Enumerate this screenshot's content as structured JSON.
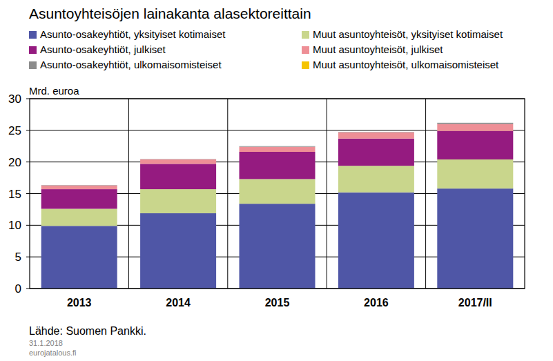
{
  "chart_data": {
    "type": "bar",
    "stacked": true,
    "grid": true,
    "title": "Asuntoyhteisöjen lainakanta alasektoreittain",
    "y_label": "Mrd. euroa",
    "categories": [
      "2013",
      "2014",
      "2015",
      "2016",
      "2017/II"
    ],
    "ylim": [
      0,
      30
    ],
    "yticks": [
      0,
      5,
      10,
      15,
      20,
      25,
      30
    ],
    "series": [
      {
        "name": "Asunto-osakeyhtiöt, yksityiset kotimaiset",
        "color": "#4f56a6",
        "values": [
          9.9,
          11.9,
          13.4,
          15.2,
          15.8
        ]
      },
      {
        "name": "Muut asuntoyhteisöt, yksityiset kotimaiset",
        "color": "#c9d68c",
        "values": [
          2.7,
          3.8,
          3.9,
          4.2,
          4.6
        ]
      },
      {
        "name": "Asunto-osakeyhtiöt, julkiset",
        "color": "#951b80",
        "values": [
          3.1,
          4.0,
          4.3,
          4.3,
          4.5
        ]
      },
      {
        "name": "Muut asuntoyhteisöt, julkiset",
        "color": "#ee8f96",
        "values": [
          0.6,
          0.7,
          0.8,
          1.0,
          1.1
        ]
      },
      {
        "name": "Asunto-osakeyhtiöt, ulkomaisomisteiset",
        "color": "#8c8c8c",
        "values": [
          0.05,
          0.05,
          0.1,
          0.05,
          0.2
        ]
      },
      {
        "name": "Muut asuntoyhteisöt, ulkomaisomisteiset",
        "color": "#f5c400",
        "values": [
          0,
          0,
          0,
          0,
          0
        ]
      }
    ],
    "annotations": [
      "Lähde: Suomen Pankki.",
      "31.1.2018",
      "eurojatalous.fi"
    ]
  }
}
